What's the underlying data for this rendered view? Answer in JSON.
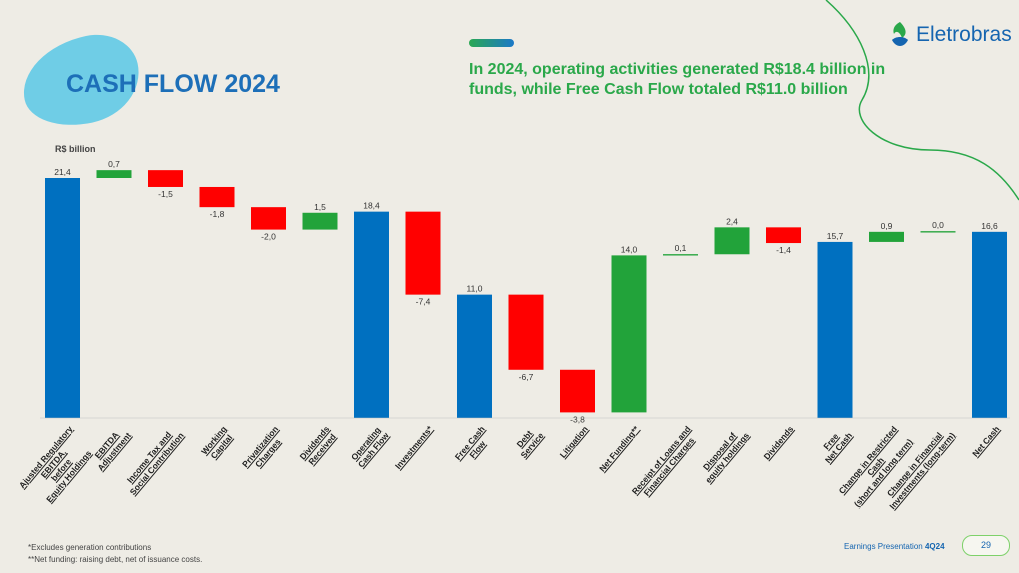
{
  "slide": {
    "title": "CASH FLOW 2024",
    "headline": "In 2024, operating activities generated R$18.4 billion in funds, while Free Cash Flow totaled R$11.0 billion",
    "logo_text": "Eletrobras",
    "footnote_1": "*Excludes generation contributions",
    "footnote_2": "**Net funding: raising debt, net of issuance costs.",
    "presentation_label": "Earnings Presentation",
    "presentation_period": "4Q24",
    "page_number": "29",
    "colors": {
      "total": "#0070c0",
      "increase": "#22a33a",
      "decrease": "#ff0000",
      "title": "#1d6fb8",
      "headline": "#2aa84a"
    }
  },
  "chart_data": {
    "type": "bar",
    "subtype": "waterfall",
    "unit_label": "R$ billion",
    "ylim": [
      0,
      22
    ],
    "categories": [
      "Ajusted Regulatory\nEBITDA,\nbefore\nEquity Holdings",
      "EBITDA\nAdjustment",
      "Income Tax and\nSocial Contribution",
      "Working\nCapital",
      "Privatization\nCharges",
      "Dividends\nReceived",
      "Operating\nCash Flow",
      "Investments*",
      "Free Cash\nFlow",
      "Debt\nService",
      "Litigation",
      "Net Funding**",
      "Receipt of Loans and\nFinancial Charges",
      "Disposal of\nequity holdings",
      "Dividends",
      "Free\nNet Cash",
      "Change in Restricted\nCash\n(short and long term)",
      "Change in Financial\nInvestments (long-term)",
      "Net Cash"
    ],
    "values": [
      21.4,
      0.7,
      -1.5,
      -1.8,
      -2.0,
      1.5,
      18.4,
      -7.4,
      11.0,
      -6.7,
      -3.8,
      14.0,
      0.1,
      2.4,
      -1.4,
      15.7,
      0.9,
      0.0,
      16.6
    ],
    "kinds": [
      "total",
      "delta",
      "delta",
      "delta",
      "delta",
      "delta",
      "total",
      "delta",
      "total",
      "delta",
      "delta",
      "delta",
      "delta",
      "delta",
      "delta",
      "total",
      "delta",
      "delta",
      "total"
    ],
    "value_labels": [
      "21,4",
      "0,7",
      "-1,5",
      "-1,8",
      "-2,0",
      "1,5",
      "18,4",
      "-7,4",
      "11,0",
      "-6,7",
      "-3,8",
      "14,0",
      "0,1",
      "2,4",
      "-1,4",
      "15,7",
      "0,9",
      "0,0",
      "16,6"
    ]
  }
}
